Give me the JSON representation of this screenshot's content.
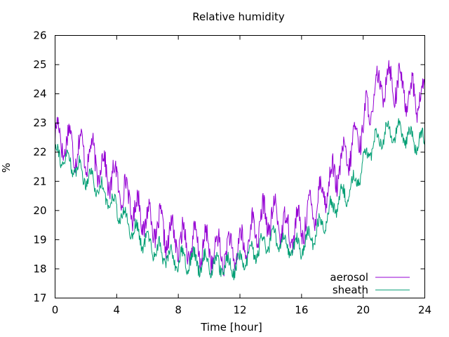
{
  "chart_data": {
    "type": "line",
    "title": "Relative humidity",
    "xlabel": "Time [hour]",
    "ylabel": "%",
    "xlim": [
      0,
      24
    ],
    "ylim": [
      17,
      26
    ],
    "x_ticks": [
      "0",
      "4",
      "8",
      "12",
      "16",
      "20",
      "24"
    ],
    "y_ticks": [
      "17",
      "18",
      "19",
      "20",
      "21",
      "22",
      "23",
      "24",
      "25",
      "26"
    ],
    "grid": false,
    "legend_position": "bottom-right",
    "x": [
      0,
      0.5,
      1,
      1.5,
      2,
      2.5,
      3,
      3.5,
      4,
      4.5,
      5,
      5.5,
      6,
      6.5,
      7,
      7.5,
      8,
      8.5,
      9,
      9.5,
      10,
      10.5,
      11,
      11.5,
      12,
      12.5,
      13,
      13.5,
      14,
      14.5,
      15,
      15.5,
      16,
      16.5,
      17,
      17.5,
      18,
      18.5,
      19,
      19.5,
      20,
      20.5,
      21,
      21.5,
      22,
      22.5,
      23,
      23.5,
      24
    ],
    "series": [
      {
        "name": "aerosol",
        "color": "#9400d3",
        "values": [
          22.6,
          22.4,
          22.3,
          22.1,
          22.0,
          21.8,
          21.5,
          21.2,
          21.0,
          20.6,
          20.2,
          19.9,
          19.7,
          19.5,
          19.3,
          19.1,
          19.0,
          18.9,
          18.8,
          18.8,
          18.7,
          18.6,
          18.6,
          18.6,
          18.7,
          19.0,
          19.4,
          19.7,
          19.8,
          19.7,
          19.4,
          19.3,
          19.5,
          19.9,
          20.3,
          20.7,
          21.1,
          21.5,
          21.9,
          22.4,
          23.0,
          23.6,
          24.2,
          24.5,
          24.4,
          24.2,
          24.0,
          23.9,
          23.8
        ]
      },
      {
        "name": "sheath",
        "color": "#009e73",
        "values": [
          22.0,
          21.8,
          21.6,
          21.4,
          21.2,
          21.0,
          20.7,
          20.4,
          20.1,
          19.7,
          19.4,
          19.1,
          18.9,
          18.7,
          18.5,
          18.4,
          18.3,
          18.3,
          18.3,
          18.2,
          18.2,
          18.1,
          18.1,
          18.1,
          18.2,
          18.4,
          18.6,
          18.8,
          19.0,
          19.0,
          18.8,
          18.7,
          18.8,
          19.0,
          19.3,
          19.7,
          20.1,
          20.4,
          20.6,
          21.0,
          21.6,
          22.1,
          22.5,
          22.7,
          22.7,
          22.6,
          22.5,
          22.4,
          22.3
        ]
      }
    ]
  }
}
